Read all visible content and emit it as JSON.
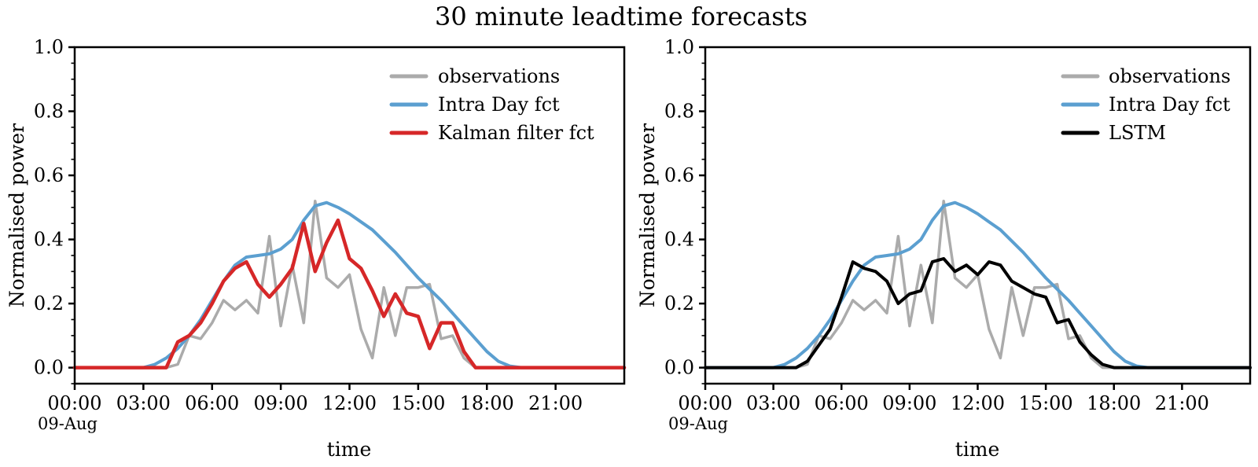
{
  "title": "30 minute leadtime forecasts",
  "colors": {
    "observations": "#ABABAB",
    "intra_day": "#5B9FD0",
    "kalman": "#D62728",
    "lstm": "#000000",
    "axis": "#000000"
  },
  "axes": {
    "ylabel": "Normalised power",
    "xlabel": "time",
    "date_offset": "09-Aug",
    "x_tick_labels": [
      "00:00",
      "03:00",
      "06:00",
      "09:00",
      "12:00",
      "15:00",
      "18:00",
      "21:00"
    ],
    "x_tick_hours": [
      0,
      3,
      6,
      9,
      12,
      15,
      18,
      21
    ],
    "y_tick_labels": [
      "0.0",
      "0.2",
      "0.4",
      "0.6",
      "0.8",
      "1.0"
    ],
    "y_tick_values": [
      0.0,
      0.2,
      0.4,
      0.6,
      0.8,
      1.0
    ],
    "y_minor_step": 0.05,
    "xlim_hours": [
      0,
      24
    ],
    "ylim": [
      -0.05,
      1.0
    ],
    "grid": "off"
  },
  "chart_data": [
    {
      "type": "line",
      "panel": "left",
      "legend_position": "upper right",
      "x_hours": [
        0,
        0.5,
        1,
        1.5,
        2,
        2.5,
        3,
        3.5,
        4,
        4.5,
        5,
        5.5,
        6,
        6.5,
        7,
        7.5,
        8,
        8.5,
        9,
        9.5,
        10,
        10.5,
        11,
        11.5,
        12,
        12.5,
        13,
        13.5,
        14,
        14.5,
        15,
        15.5,
        16,
        16.5,
        17,
        17.5,
        18,
        18.5,
        19,
        19.5,
        20,
        20.5,
        21,
        21.5,
        22,
        22.5,
        23,
        23.5,
        24
      ],
      "series": [
        {
          "name": "observations",
          "color_key": "observations",
          "values": [
            0,
            0,
            0,
            0,
            0,
            0,
            0,
            0,
            0,
            0.01,
            0.1,
            0.09,
            0.14,
            0.21,
            0.18,
            0.21,
            0.17,
            0.41,
            0.13,
            0.32,
            0.14,
            0.52,
            0.28,
            0.25,
            0.29,
            0.12,
            0.03,
            0.25,
            0.1,
            0.25,
            0.25,
            0.26,
            0.09,
            0.1,
            0.03,
            0,
            0,
            0,
            0,
            0,
            0,
            0,
            0,
            0,
            0,
            0,
            0,
            0,
            0
          ]
        },
        {
          "name": "Intra Day fct",
          "color_key": "intra_day",
          "values": [
            0,
            0,
            0,
            0,
            0,
            0,
            0,
            0.01,
            0.03,
            0.06,
            0.1,
            0.15,
            0.21,
            0.27,
            0.32,
            0.345,
            0.35,
            0.355,
            0.37,
            0.4,
            0.46,
            0.505,
            0.515,
            0.5,
            0.48,
            0.455,
            0.43,
            0.395,
            0.36,
            0.32,
            0.28,
            0.245,
            0.21,
            0.17,
            0.13,
            0.09,
            0.05,
            0.02,
            0.005,
            0,
            0,
            0,
            0,
            0,
            0,
            0,
            0,
            0,
            0
          ]
        },
        {
          "name": "Kalman filter fct",
          "color_key": "kalman",
          "values": [
            0,
            0,
            0,
            0,
            0,
            0,
            0,
            0,
            0,
            0.08,
            0.1,
            0.14,
            0.2,
            0.27,
            0.31,
            0.33,
            0.26,
            0.22,
            0.26,
            0.31,
            0.45,
            0.3,
            0.39,
            0.46,
            0.34,
            0.31,
            0.24,
            0.16,
            0.23,
            0.17,
            0.16,
            0.06,
            0.14,
            0.14,
            0.05,
            0,
            0,
            0,
            0,
            0,
            0,
            0,
            0,
            0,
            0,
            0,
            0,
            0,
            0
          ]
        }
      ]
    },
    {
      "type": "line",
      "panel": "right",
      "legend_position": "upper right",
      "x_hours": [
        0,
        0.5,
        1,
        1.5,
        2,
        2.5,
        3,
        3.5,
        4,
        4.5,
        5,
        5.5,
        6,
        6.5,
        7,
        7.5,
        8,
        8.5,
        9,
        9.5,
        10,
        10.5,
        11,
        11.5,
        12,
        12.5,
        13,
        13.5,
        14,
        14.5,
        15,
        15.5,
        16,
        16.5,
        17,
        17.5,
        18,
        18.5,
        19,
        19.5,
        20,
        20.5,
        21,
        21.5,
        22,
        22.5,
        23,
        23.5,
        24
      ],
      "series": [
        {
          "name": "observations",
          "color_key": "observations",
          "values": [
            0,
            0,
            0,
            0,
            0,
            0,
            0,
            0,
            0,
            0.01,
            0.1,
            0.09,
            0.14,
            0.21,
            0.18,
            0.21,
            0.17,
            0.41,
            0.13,
            0.32,
            0.14,
            0.52,
            0.28,
            0.25,
            0.29,
            0.12,
            0.03,
            0.25,
            0.1,
            0.25,
            0.25,
            0.26,
            0.09,
            0.1,
            0.03,
            0,
            0,
            0,
            0,
            0,
            0,
            0,
            0,
            0,
            0,
            0,
            0,
            0,
            0
          ]
        },
        {
          "name": "Intra Day fct",
          "color_key": "intra_day",
          "values": [
            0,
            0,
            0,
            0,
            0,
            0,
            0,
            0.01,
            0.03,
            0.06,
            0.1,
            0.15,
            0.21,
            0.27,
            0.32,
            0.345,
            0.35,
            0.355,
            0.37,
            0.4,
            0.46,
            0.505,
            0.515,
            0.5,
            0.48,
            0.455,
            0.43,
            0.395,
            0.36,
            0.32,
            0.28,
            0.245,
            0.21,
            0.17,
            0.13,
            0.09,
            0.05,
            0.02,
            0.005,
            0,
            0,
            0,
            0,
            0,
            0,
            0,
            0,
            0,
            0
          ]
        },
        {
          "name": "LSTM",
          "color_key": "lstm",
          "values": [
            0,
            0,
            0,
            0,
            0,
            0,
            0,
            0,
            0,
            0.02,
            0.07,
            0.12,
            0.22,
            0.33,
            0.31,
            0.3,
            0.27,
            0.2,
            0.23,
            0.24,
            0.33,
            0.34,
            0.3,
            0.32,
            0.29,
            0.33,
            0.32,
            0.27,
            0.25,
            0.23,
            0.22,
            0.14,
            0.15,
            0.08,
            0.04,
            0.01,
            0,
            0,
            0,
            0,
            0,
            0,
            0,
            0,
            0,
            0,
            0,
            0,
            0
          ]
        }
      ]
    }
  ]
}
